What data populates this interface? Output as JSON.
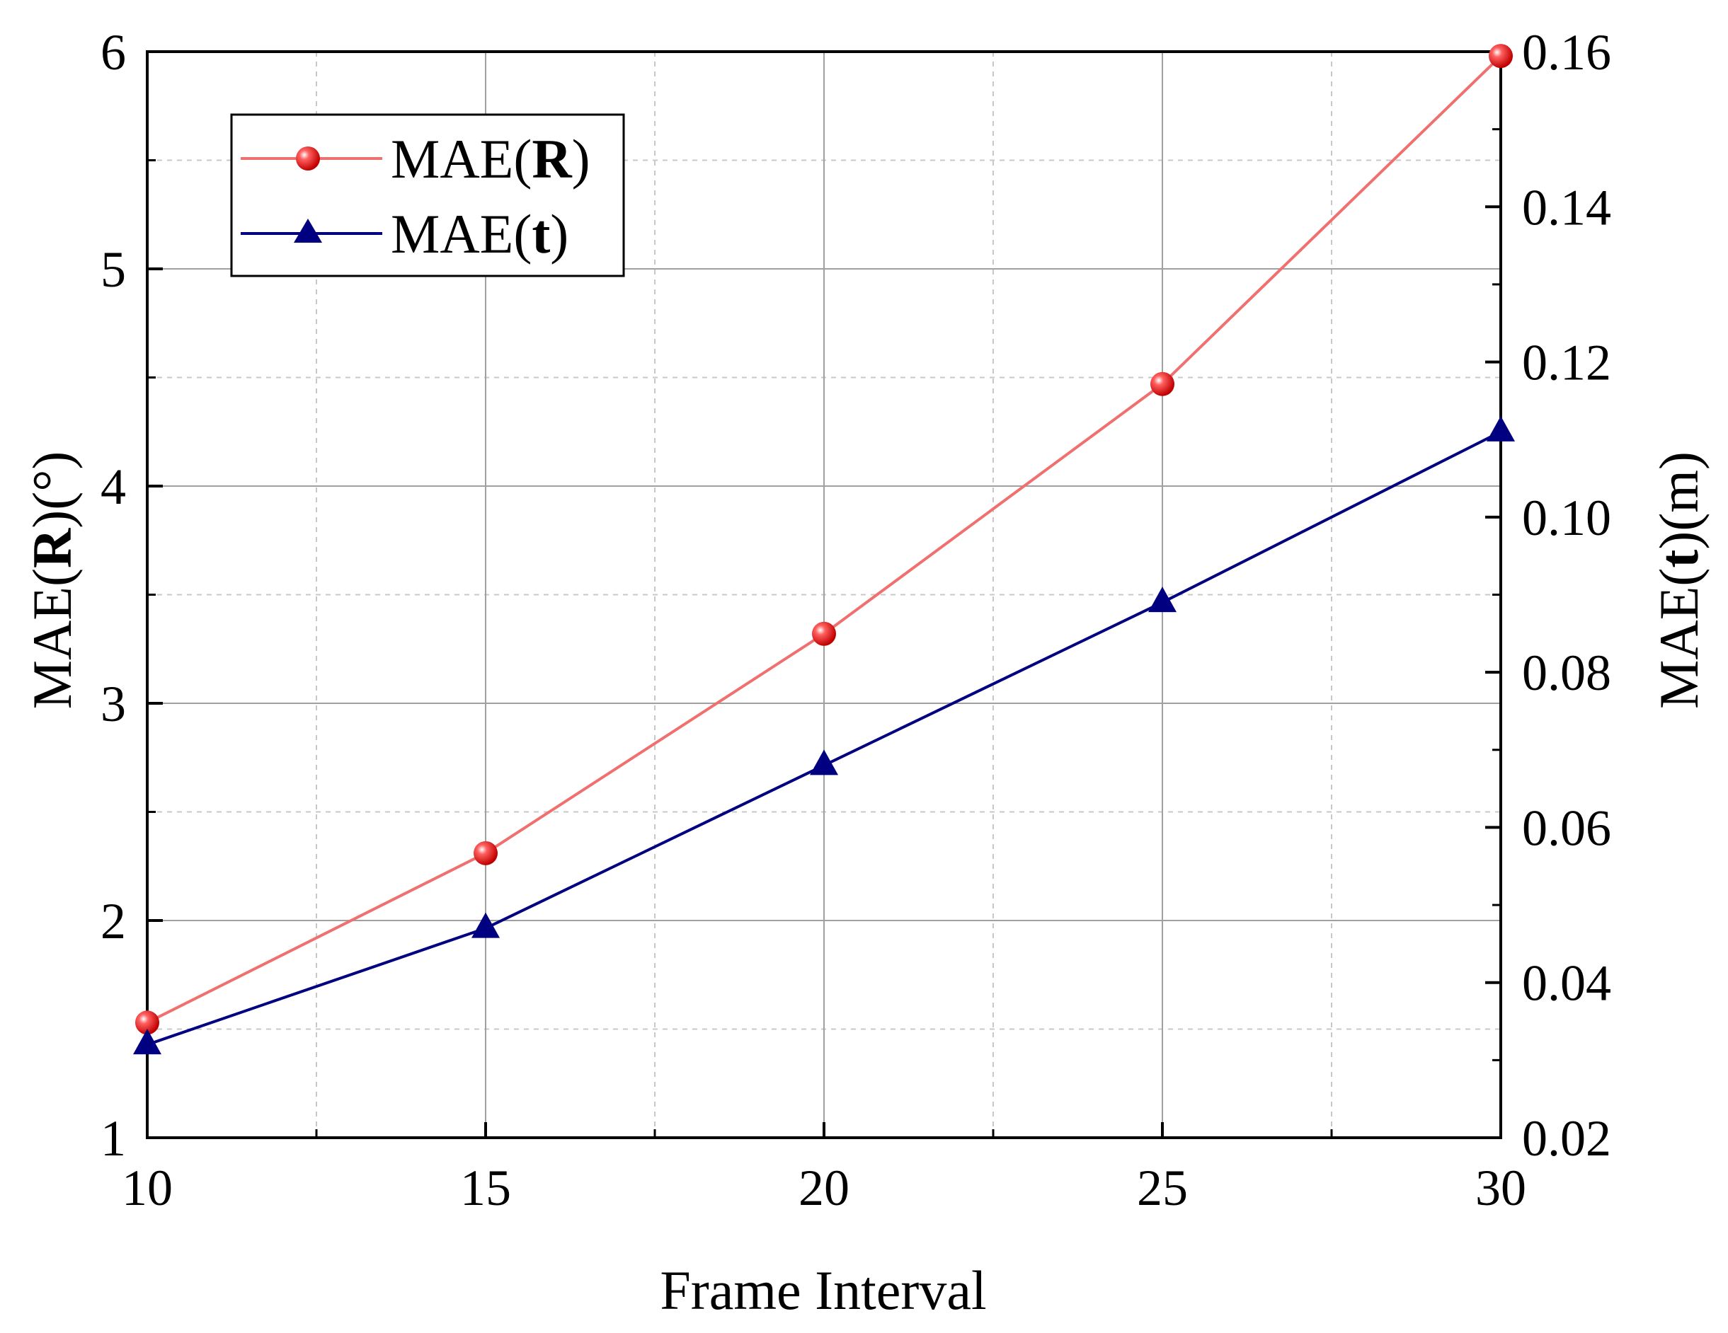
{
  "chart_data": {
    "type": "line",
    "title": "",
    "xlabel": "Frame Interval",
    "ylabel_left": {
      "prefix": "MAE(",
      "bold": "R",
      "suffix": ")(°)"
    },
    "ylabel_right": {
      "prefix": "MAE(",
      "bold": "t",
      "suffix": ")(m)"
    },
    "x": [
      10,
      15,
      20,
      25,
      30
    ],
    "xlim": [
      10,
      30
    ],
    "ylim_left": [
      1,
      6
    ],
    "ylim_right": [
      0.02,
      0.16
    ],
    "x_ticks": [
      "10",
      "15",
      "20",
      "25",
      "30"
    ],
    "y_left_ticks": [
      "1",
      "2",
      "3",
      "4",
      "5",
      "6"
    ],
    "y_right_ticks": [
      "0.02",
      "0.04",
      "0.06",
      "0.08",
      "0.10",
      "0.12",
      "0.14",
      "0.16"
    ],
    "grid": true,
    "legend_position": "top-left",
    "series": [
      {
        "name": "MAE(R)",
        "label_prefix": "MAE(",
        "label_bold": "R",
        "label_suffix": ")",
        "axis": "left",
        "marker": "circle",
        "color": "#f07070",
        "marker_color": "#e31a1c",
        "values": [
          1.53,
          2.31,
          3.32,
          4.47,
          5.98
        ]
      },
      {
        "name": "MAE(t)",
        "label_prefix": "MAE(",
        "label_bold": "t",
        "label_suffix": ")",
        "axis": "right",
        "marker": "triangle",
        "color": "#000080",
        "marker_color": "#000080",
        "values": [
          0.032,
          0.047,
          0.068,
          0.089,
          0.111
        ]
      }
    ]
  }
}
